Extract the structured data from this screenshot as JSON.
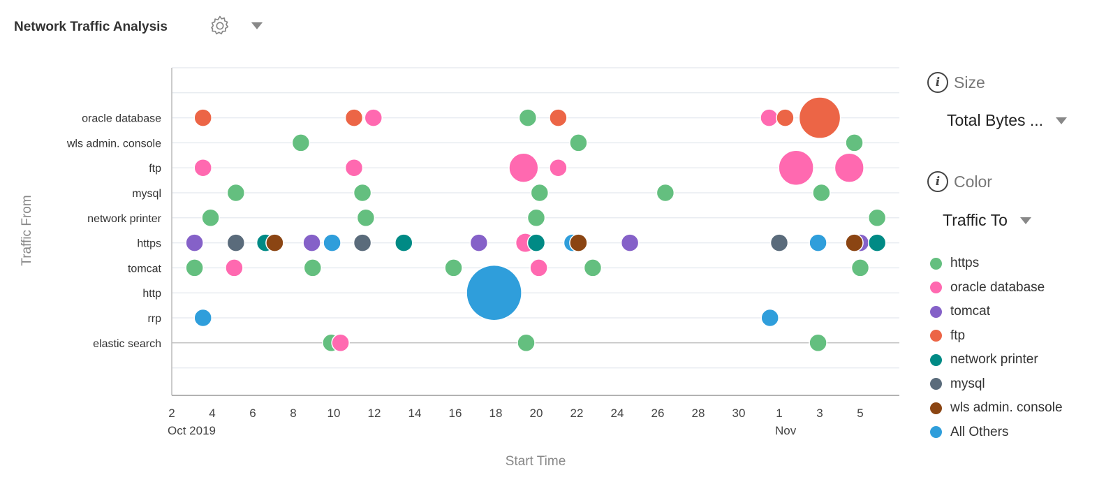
{
  "header": {
    "title": "Network Traffic Analysis",
    "settings_icon": "gear-icon",
    "menu_icon": "caret-down-icon"
  },
  "controls": {
    "size": {
      "label": "Size",
      "value": "Total Bytes ...",
      "icon": "info-icon"
    },
    "color": {
      "label": "Color",
      "value": "Traffic To",
      "icon": "info-icon"
    }
  },
  "legend": [
    {
      "key": "https",
      "label": "https",
      "color": "#64bf7f"
    },
    {
      "key": "oracle",
      "label": "oracle database",
      "color": "#ff69b0"
    },
    {
      "key": "tomcat",
      "label": "tomcat",
      "color": "#8561c8"
    },
    {
      "key": "ftp",
      "label": "ftp",
      "color": "#ec6546"
    },
    {
      "key": "printer",
      "label": "network printer",
      "color": "#008a85"
    },
    {
      "key": "mysql",
      "label": "mysql",
      "color": "#5a6b7b"
    },
    {
      "key": "wls",
      "label": "wls admin. console",
      "color": "#8b4513"
    },
    {
      "key": "others",
      "label": "All Others",
      "color": "#2f9edb"
    }
  ],
  "chart_data": {
    "type": "scatter",
    "subtype": "bubble",
    "xlabel": "Start Time",
    "ylabel": "Traffic From",
    "xlim": [
      "2019-10-02 00:00",
      "2019-11-06 00:00"
    ],
    "x_ticks": [
      {
        "date": "2019-10-02",
        "label": "2",
        "sub": "Oct 2019"
      },
      {
        "date": "2019-10-04",
        "label": "4"
      },
      {
        "date": "2019-10-06",
        "label": "6"
      },
      {
        "date": "2019-10-08",
        "label": "8"
      },
      {
        "date": "2019-10-10",
        "label": "10"
      },
      {
        "date": "2019-10-12",
        "label": "12"
      },
      {
        "date": "2019-10-14",
        "label": "14"
      },
      {
        "date": "2019-10-16",
        "label": "16"
      },
      {
        "date": "2019-10-18",
        "label": "18"
      },
      {
        "date": "2019-10-20",
        "label": "20"
      },
      {
        "date": "2019-10-22",
        "label": "22"
      },
      {
        "date": "2019-10-24",
        "label": "24"
      },
      {
        "date": "2019-10-26",
        "label": "26"
      },
      {
        "date": "2019-10-28",
        "label": "28"
      },
      {
        "date": "2019-10-30",
        "label": "30"
      },
      {
        "date": "2019-11-01",
        "label": "1",
        "sub": "Nov"
      },
      {
        "date": "2019-11-03",
        "label": "3"
      },
      {
        "date": "2019-11-05",
        "label": "5"
      }
    ],
    "categories": [
      "oracle database",
      "wls admin. console",
      "ftp",
      "mysql",
      "network printer",
      "https",
      "tomcat",
      "http",
      "rrp",
      "elastic search"
    ],
    "grid": true,
    "legend_position": "right",
    "size_unit": "relative total bytes",
    "points": [
      {
        "y": "oracle database",
        "x": "2019-10-03 13:00",
        "to": "ftp",
        "size": 1
      },
      {
        "y": "oracle database",
        "x": "2019-10-11 00:00",
        "to": "ftp",
        "size": 1
      },
      {
        "y": "oracle database",
        "x": "2019-10-11 23:00",
        "to": "oracle",
        "size": 1
      },
      {
        "y": "oracle database",
        "x": "2019-10-19 14:00",
        "to": "https",
        "size": 1
      },
      {
        "y": "oracle database",
        "x": "2019-10-21 02:00",
        "to": "ftp",
        "size": 1
      },
      {
        "y": "oracle database",
        "x": "2019-10-31 12:00",
        "to": "oracle",
        "size": 1
      },
      {
        "y": "oracle database",
        "x": "2019-11-01 07:00",
        "to": "ftp",
        "size": 1
      },
      {
        "y": "oracle database",
        "x": "2019-11-03 00:00",
        "to": "ftp",
        "size": 5.6
      },
      {
        "y": "wls admin. console",
        "x": "2019-10-08 09:00",
        "to": "https",
        "size": 1
      },
      {
        "y": "wls admin. console",
        "x": "2019-10-22 02:00",
        "to": "https",
        "size": 1
      },
      {
        "y": "wls admin. console",
        "x": "2019-11-04 17:00",
        "to": "https",
        "size": 1
      },
      {
        "y": "ftp",
        "x": "2019-10-03 13:00",
        "to": "oracle",
        "size": 1
      },
      {
        "y": "ftp",
        "x": "2019-10-11 00:00",
        "to": "oracle",
        "size": 1
      },
      {
        "y": "ftp",
        "x": "2019-10-19 09:00",
        "to": "oracle",
        "size": 2.8
      },
      {
        "y": "ftp",
        "x": "2019-10-21 02:00",
        "to": "oracle",
        "size": 1
      },
      {
        "y": "ftp",
        "x": "2019-11-01 20:00",
        "to": "oracle",
        "size": 4
      },
      {
        "y": "ftp",
        "x": "2019-11-04 11:00",
        "to": "oracle",
        "size": 2.8
      },
      {
        "y": "mysql",
        "x": "2019-10-05 04:00",
        "to": "https",
        "size": 1
      },
      {
        "y": "mysql",
        "x": "2019-10-11 10:00",
        "to": "https",
        "size": 1
      },
      {
        "y": "mysql",
        "x": "2019-10-20 04:00",
        "to": "https",
        "size": 1
      },
      {
        "y": "mysql",
        "x": "2019-10-26 09:00",
        "to": "https",
        "size": 1
      },
      {
        "y": "mysql",
        "x": "2019-11-03 02:00",
        "to": "https",
        "size": 1
      },
      {
        "y": "network printer",
        "x": "2019-10-03 22:00",
        "to": "https",
        "size": 1
      },
      {
        "y": "network printer",
        "x": "2019-10-11 14:00",
        "to": "https",
        "size": 1
      },
      {
        "y": "network printer",
        "x": "2019-10-20 00:00",
        "to": "https",
        "size": 1
      },
      {
        "y": "network printer",
        "x": "2019-11-05 20:00",
        "to": "https",
        "size": 1
      },
      {
        "y": "https",
        "x": "2019-10-03 03:00",
        "to": "tomcat",
        "size": 1
      },
      {
        "y": "https",
        "x": "2019-10-05 04:00",
        "to": "mysql",
        "size": 1
      },
      {
        "y": "https",
        "x": "2019-10-06 15:00",
        "to": "printer",
        "size": 1
      },
      {
        "y": "https",
        "x": "2019-10-07 02:00",
        "to": "wls",
        "size": 1
      },
      {
        "y": "https",
        "x": "2019-10-08 22:00",
        "to": "tomcat",
        "size": 1
      },
      {
        "y": "https",
        "x": "2019-10-09 22:00",
        "to": "others",
        "size": 1
      },
      {
        "y": "https",
        "x": "2019-10-11 10:00",
        "to": "mysql",
        "size": 1
      },
      {
        "y": "https",
        "x": "2019-10-13 11:00",
        "to": "printer",
        "size": 1
      },
      {
        "y": "https",
        "x": "2019-10-17 04:00",
        "to": "tomcat",
        "size": 1
      },
      {
        "y": "https",
        "x": "2019-10-19 11:00",
        "to": "oracle",
        "size": 1.2
      },
      {
        "y": "https",
        "x": "2019-10-20 00:00",
        "to": "printer",
        "size": 1
      },
      {
        "y": "https",
        "x": "2019-10-21 19:00",
        "to": "others",
        "size": 1
      },
      {
        "y": "https",
        "x": "2019-10-22 02:00",
        "to": "wls",
        "size": 1
      },
      {
        "y": "https",
        "x": "2019-10-24 15:00",
        "to": "tomcat",
        "size": 1
      },
      {
        "y": "https",
        "x": "2019-11-01 00:00",
        "to": "mysql",
        "size": 1
      },
      {
        "y": "https",
        "x": "2019-11-02 22:00",
        "to": "others",
        "size": 1
      },
      {
        "y": "https",
        "x": "2019-11-05 00:00",
        "to": "tomcat",
        "size": 1
      },
      {
        "y": "https",
        "x": "2019-11-04 17:00",
        "to": "wls",
        "size": 1
      },
      {
        "y": "https",
        "x": "2019-11-05 20:00",
        "to": "printer",
        "size": 1
      },
      {
        "y": "tomcat",
        "x": "2019-10-03 03:00",
        "to": "https",
        "size": 1
      },
      {
        "y": "tomcat",
        "x": "2019-10-05 02:00",
        "to": "oracle",
        "size": 1
      },
      {
        "y": "tomcat",
        "x": "2019-10-08 23:00",
        "to": "https",
        "size": 1
      },
      {
        "y": "tomcat",
        "x": "2019-10-15 22:00",
        "to": "https",
        "size": 1
      },
      {
        "y": "tomcat",
        "x": "2019-10-20 03:00",
        "to": "oracle",
        "size": 1
      },
      {
        "y": "tomcat",
        "x": "2019-10-22 19:00",
        "to": "https",
        "size": 1
      },
      {
        "y": "tomcat",
        "x": "2019-11-05 00:00",
        "to": "https",
        "size": 1
      },
      {
        "y": "http",
        "x": "2019-10-17 22:00",
        "to": "others",
        "size": 10
      },
      {
        "y": "rrp",
        "x": "2019-10-03 13:00",
        "to": "others",
        "size": 1
      },
      {
        "y": "rrp",
        "x": "2019-10-31 13:00",
        "to": "others",
        "size": 1
      },
      {
        "y": "elastic search",
        "x": "2019-10-09 21:00",
        "to": "https",
        "size": 1
      },
      {
        "y": "elastic search",
        "x": "2019-10-10 08:00",
        "to": "oracle",
        "size": 1
      },
      {
        "y": "elastic search",
        "x": "2019-10-19 12:00",
        "to": "https",
        "size": 1
      },
      {
        "y": "elastic search",
        "x": "2019-11-02 22:00",
        "to": "https",
        "size": 1
      }
    ]
  }
}
